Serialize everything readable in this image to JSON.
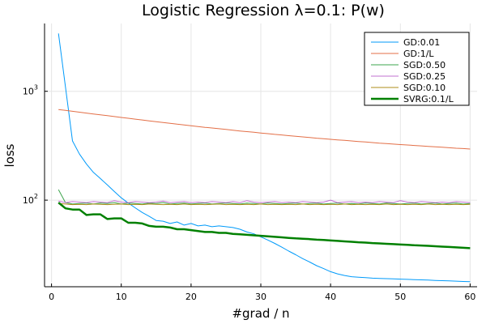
{
  "chart_data": {
    "type": "line",
    "title": "Logistic Regression λ=0.1: P(w)",
    "xlabel": "#grad / n",
    "ylabel": "loss",
    "yscale": "log",
    "xlim": [
      -1,
      61
    ],
    "ylim": [
      16,
      4200
    ],
    "grid": true,
    "legend_position": "top-right",
    "x_ticks": [
      0,
      10,
      20,
      30,
      40,
      50,
      60
    ],
    "x_tick_labels": [
      "0",
      "10",
      "20",
      "30",
      "40",
      "50",
      "60"
    ],
    "y_ticks": [
      100,
      1000
    ],
    "y_tick_base": "10",
    "y_tick_exponents": [
      "2",
      "3"
    ],
    "x": [
      1,
      2,
      3,
      4,
      5,
      6,
      7,
      8,
      9,
      10,
      11,
      12,
      13,
      14,
      15,
      16,
      17,
      18,
      19,
      20,
      21,
      22,
      23,
      24,
      25,
      26,
      27,
      28,
      29,
      30,
      31,
      32,
      33,
      34,
      35,
      36,
      37,
      38,
      39,
      40,
      41,
      42,
      43,
      44,
      45,
      46,
      47,
      48,
      49,
      50,
      51,
      52,
      53,
      54,
      55,
      56,
      57,
      58,
      59,
      60
    ],
    "series": [
      {
        "name": "GD:0.01",
        "color": "#009AFA",
        "width": 1,
        "values": [
          3400,
          1100,
          350,
          265,
          215,
          180,
          158,
          138,
          120,
          105,
          94,
          85,
          77,
          71,
          65,
          64,
          61,
          63,
          59,
          61,
          58,
          59,
          57,
          58,
          57,
          56,
          54,
          51,
          49,
          46,
          43,
          40,
          37,
          34,
          31.5,
          29,
          27,
          25,
          23.5,
          22,
          21,
          20.3,
          19.8,
          19.6,
          19.4,
          19.2,
          19.1,
          19,
          18.9,
          18.8,
          18.7,
          18.6,
          18.5,
          18.4,
          18.3,
          18.2,
          18.1,
          18,
          17.9,
          17.8
        ]
      },
      {
        "name": "GD:1/L",
        "color": "#E36F47",
        "width": 1,
        "values": [
          680,
          668,
          655,
          643,
          631,
          619,
          608,
          597,
          586,
          575,
          565,
          555,
          545,
          535,
          526,
          517,
          508,
          499,
          491,
          483,
          475,
          467,
          460,
          453,
          446,
          439,
          432,
          426,
          420,
          414,
          408,
          402,
          397,
          391,
          386,
          381,
          376,
          371,
          367,
          362,
          358,
          354,
          350,
          346,
          342,
          338,
          334,
          331,
          327,
          324,
          321,
          318,
          315,
          312,
          309,
          306,
          303,
          300,
          298,
          295
        ]
      },
      {
        "name": "SGD:0.50",
        "color": "#3EA44E",
        "width": 1,
        "values": [
          125,
          95,
          92,
          93,
          94,
          92,
          94,
          93,
          95,
          92,
          94,
          93,
          92,
          94,
          93,
          95,
          92,
          93,
          94,
          92,
          93,
          94,
          92,
          93,
          94,
          93,
          92,
          94,
          93,
          92,
          94,
          93,
          92,
          93,
          94,
          92,
          93,
          94,
          92,
          93,
          94,
          92,
          93,
          92,
          94,
          93,
          92,
          94,
          93,
          92,
          93,
          94,
          92,
          93,
          94,
          92,
          93,
          94,
          92,
          93
        ]
      },
      {
        "name": "SGD:0.25",
        "color": "#C271D2",
        "width": 1,
        "values": [
          98,
          95,
          97,
          96,
          95,
          97,
          96,
          95,
          99,
          96,
          95,
          97,
          96,
          95,
          96,
          98,
          95,
          96,
          97,
          95,
          96,
          95,
          97,
          96,
          95,
          97,
          95,
          99,
          96,
          95,
          96,
          97,
          95,
          96,
          95,
          97,
          96,
          95,
          96,
          100,
          95,
          96,
          97,
          95,
          96,
          95,
          97,
          96,
          95,
          99,
          96,
          95,
          97,
          96,
          95,
          96,
          95,
          97,
          96,
          95
        ]
      },
      {
        "name": "SGD:0.10",
        "color": "#AC8D18",
        "width": 1,
        "values": [
          93,
          92,
          91,
          91.5,
          91,
          92,
          91.5,
          91,
          91.5,
          92,
          91,
          91.5,
          91,
          92,
          91.5,
          91,
          91.5,
          91,
          92,
          91,
          91.5,
          91,
          91.5,
          92,
          91,
          91.5,
          91,
          91.5,
          91,
          92,
          91,
          91.5,
          91,
          91.5,
          91,
          92,
          91,
          91.5,
          91,
          91.5,
          91,
          92,
          91,
          91.5,
          91,
          91.5,
          91,
          92,
          91,
          91.5,
          91,
          91.5,
          91,
          92,
          91,
          91.5,
          91,
          91.5,
          91,
          91.5
        ]
      },
      {
        "name": "SVRG:0.1/L",
        "color": "#008000",
        "width": 2.5,
        "values": [
          95,
          84,
          82,
          82,
          73,
          74,
          74,
          67,
          68,
          68,
          62,
          62,
          61,
          58,
          57,
          57,
          56,
          54,
          54,
          53,
          52,
          51,
          51,
          50,
          50,
          49,
          48.5,
          48,
          47.5,
          47,
          46.5,
          46,
          45.5,
          45,
          44.5,
          44.2,
          43.8,
          43.3,
          43,
          42.6,
          42.2,
          41.8,
          41.4,
          41,
          40.7,
          40.3,
          40,
          39.7,
          39.4,
          39.1,
          38.8,
          38.5,
          38.3,
          38,
          37.7,
          37.4,
          37.1,
          36.8,
          36.5,
          36.2
        ]
      }
    ]
  }
}
